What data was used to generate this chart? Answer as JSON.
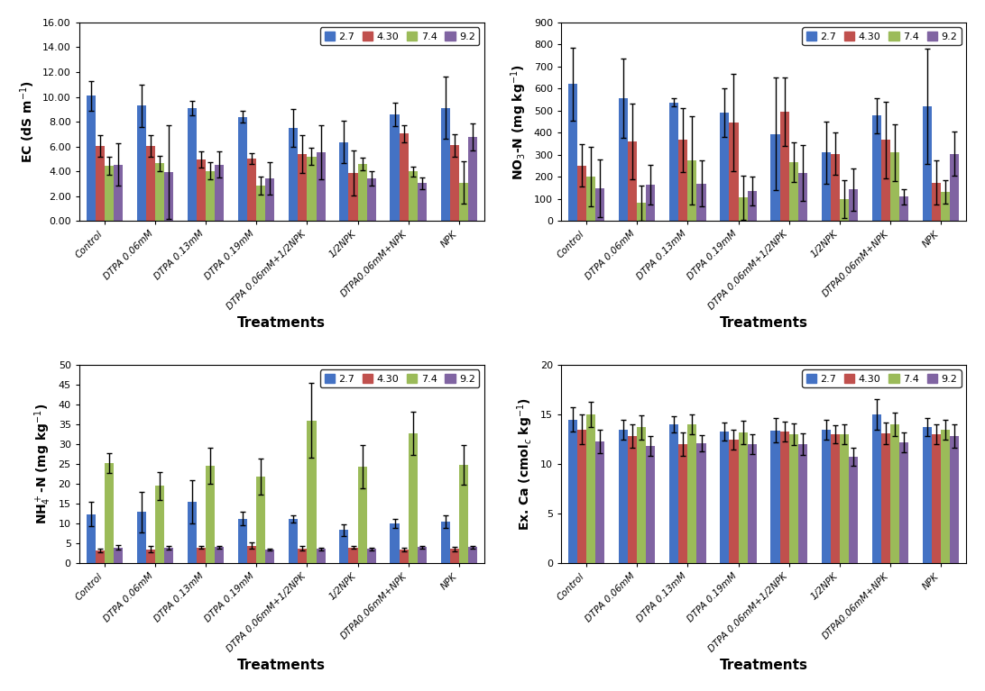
{
  "categories": [
    "Control",
    "DTPA 0.06mM",
    "DTPA 0.13mM",
    "DTPA 0.19mM",
    "DTPA 0.06mM+1/2NPK",
    "1/2NPK",
    "DTPA0.06mM+NPK",
    "NPK"
  ],
  "legend_labels": [
    "2.7",
    "4.30",
    "7.4",
    "9.2"
  ],
  "bar_colors": [
    "#4472C4",
    "#C0504D",
    "#9BBB59",
    "#8064A2"
  ],
  "ec": {
    "ylim": [
      0,
      16
    ],
    "yticks": [
      0,
      2,
      4,
      6,
      8,
      10,
      12,
      14,
      16
    ],
    "ytick_labels": [
      "0.00",
      "2.00",
      "4.00",
      "6.00",
      "8.00",
      "10.00",
      "12.00",
      "14.00",
      "16.00"
    ],
    "values": [
      [
        10.1,
        9.3,
        9.1,
        8.4,
        7.5,
        6.35,
        8.6,
        9.1
      ],
      [
        6.05,
        6.05,
        4.95,
        5.05,
        5.4,
        3.85,
        7.05,
        6.1
      ],
      [
        4.45,
        4.65,
        4.05,
        2.85,
        5.2,
        4.6,
        4.0,
        3.1
      ],
      [
        4.55,
        3.95,
        4.55,
        3.45,
        5.55,
        3.45,
        3.05,
        6.75
      ]
    ],
    "errors": [
      [
        1.2,
        1.7,
        0.55,
        0.5,
        1.5,
        1.7,
        0.95,
        2.5
      ],
      [
        0.9,
        0.9,
        0.65,
        0.45,
        1.5,
        1.8,
        0.7,
        0.9
      ],
      [
        0.7,
        0.6,
        0.7,
        0.75,
        0.7,
        0.5,
        0.4,
        1.7
      ],
      [
        1.7,
        3.8,
        1.05,
        1.3,
        2.2,
        0.6,
        0.45,
        1.1
      ]
    ]
  },
  "no3": {
    "ylim": [
      0,
      900
    ],
    "yticks": [
      0,
      100,
      200,
      300,
      400,
      500,
      600,
      700,
      800,
      900
    ],
    "ytick_labels": [
      "0",
      "100",
      "200",
      "300",
      "400",
      "500",
      "600",
      "700",
      "800",
      "900"
    ],
    "values": [
      [
        620,
        555,
        538,
        490,
        395,
        310,
        478,
        520
      ],
      [
        252,
        360,
        368,
        447,
        497,
        305,
        367,
        173
      ],
      [
        203,
        82,
        275,
        107,
        268,
        99,
        310,
        132
      ],
      [
        148,
        163,
        170,
        136,
        218,
        143,
        110,
        305
      ]
    ],
    "errors": [
      [
        165,
        180,
        18,
        110,
        255,
        140,
        80,
        260
      ],
      [
        95,
        170,
        145,
        220,
        155,
        95,
        175,
        100
      ],
      [
        135,
        80,
        200,
        100,
        90,
        85,
        130,
        55
      ],
      [
        130,
        90,
        105,
        65,
        125,
        95,
        35,
        100
      ]
    ]
  },
  "nh4": {
    "ylim": [
      0,
      50
    ],
    "yticks": [
      0,
      5,
      10,
      15,
      20,
      25,
      30,
      35,
      40,
      45,
      50
    ],
    "ytick_labels": [
      "0",
      "5",
      "10",
      "15",
      "20",
      "25",
      "30",
      "35",
      "40",
      "45",
      "50"
    ],
    "values": [
      [
        12.4,
        12.9,
        15.5,
        11.3,
        11.2,
        8.4,
        10.1,
        10.5
      ],
      [
        3.3,
        3.5,
        4.0,
        4.5,
        3.8,
        4.0,
        3.5,
        3.6
      ],
      [
        25.3,
        19.5,
        24.5,
        21.8,
        36.0,
        24.3,
        32.7,
        24.7
      ],
      [
        4.05,
        4.0,
        4.1,
        3.5,
        3.6,
        3.6,
        4.1,
        4.1
      ]
    ],
    "errors": [
      [
        3.0,
        5.0,
        5.5,
        1.8,
        1.0,
        1.5,
        1.2,
        1.5
      ],
      [
        0.5,
        0.8,
        0.4,
        0.7,
        0.5,
        0.3,
        0.4,
        0.5
      ],
      [
        2.5,
        3.5,
        4.5,
        4.5,
        9.5,
        5.5,
        5.5,
        5.0
      ],
      [
        0.5,
        0.5,
        0.4,
        0.3,
        0.3,
        0.3,
        0.3,
        0.4
      ]
    ]
  },
  "exca": {
    "ylim": [
      0,
      20
    ],
    "yticks": [
      0,
      5,
      10,
      15,
      20
    ],
    "ytick_labels": [
      "0",
      "5",
      "10",
      "15",
      "20"
    ],
    "values": [
      [
        14.5,
        13.5,
        14.0,
        13.3,
        13.4,
        13.5,
        15.0,
        13.7
      ],
      [
        13.5,
        12.8,
        12.0,
        12.5,
        13.3,
        13.0,
        13.1,
        13.0
      ],
      [
        15.0,
        13.7,
        14.0,
        13.2,
        13.0,
        13.0,
        14.0,
        13.5
      ],
      [
        12.3,
        11.8,
        12.1,
        12.0,
        12.0,
        10.7,
        12.2,
        12.8
      ]
    ],
    "errors": [
      [
        1.2,
        1.0,
        0.8,
        0.9,
        1.2,
        1.0,
        1.5,
        0.9
      ],
      [
        1.5,
        1.2,
        1.2,
        1.0,
        1.0,
        0.9,
        1.1,
        1.0
      ],
      [
        1.3,
        1.2,
        1.0,
        1.2,
        1.1,
        1.0,
        1.2,
        1.0
      ],
      [
        1.2,
        1.0,
        0.8,
        1.0,
        1.1,
        0.9,
        1.0,
        1.2
      ]
    ]
  },
  "xlabel": "Treatments",
  "background_color": "#FFFFFF"
}
